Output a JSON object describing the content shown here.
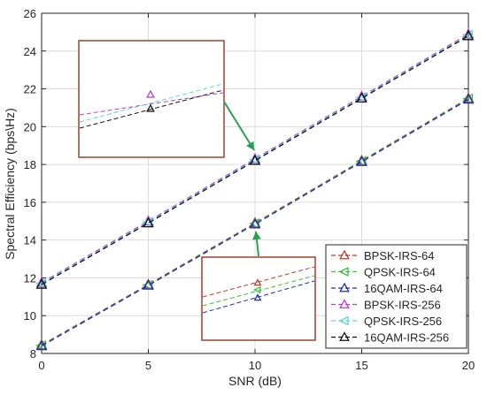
{
  "chart_data": {
    "type": "line",
    "title": "",
    "xlabel": "SNR (dB)",
    "ylabel": "Spectral Efficiency (bps\\Hz)",
    "xlim": [
      0,
      20
    ],
    "ylim": [
      8,
      26
    ],
    "xticks": [
      0,
      5,
      10,
      15,
      20
    ],
    "yticks": [
      8,
      10,
      12,
      14,
      16,
      18,
      20,
      22,
      24,
      26
    ],
    "x": [
      0,
      5,
      10,
      15,
      20
    ],
    "grid": true,
    "legend_position": "bottom-right",
    "series": [
      {
        "name": "BPSK-IRS-64",
        "values": [
          8.45,
          11.65,
          14.9,
          18.2,
          21.5
        ],
        "color": "#c0392b",
        "marker": "triangle-up"
      },
      {
        "name": "QPSK-IRS-64",
        "values": [
          8.42,
          11.62,
          14.87,
          18.17,
          21.47
        ],
        "color": "#3cc13c",
        "marker": "triangle-left"
      },
      {
        "name": "16QAM-IRS-64",
        "values": [
          8.4,
          11.6,
          14.84,
          18.14,
          21.44
        ],
        "color": "#1f2fb4",
        "marker": "triangle-up"
      },
      {
        "name": "BPSK-IRS-256",
        "values": [
          11.75,
          15.0,
          18.3,
          21.6,
          24.9
        ],
        "color": "#c03bd6",
        "marker": "triangle-up"
      },
      {
        "name": "QPSK-IRS-256",
        "values": [
          11.7,
          14.95,
          18.25,
          21.55,
          24.85
        ],
        "color": "#5ad4e8",
        "marker": "triangle-left"
      },
      {
        "name": "16QAM-IRS-256",
        "values": [
          11.65,
          14.9,
          18.2,
          21.5,
          24.8
        ],
        "color": "#111111",
        "marker": "triangle-up"
      }
    ],
    "insets": [
      {
        "name": "upper-zoom",
        "frame_color": "#a0412d",
        "arrow_color": "#2e9e4f",
        "target": {
          "x": 10,
          "y": 18.25
        }
      },
      {
        "name": "lower-zoom",
        "frame_color": "#a0412d",
        "arrow_color": "#2e9e4f",
        "target": {
          "x": 10,
          "y": 14.87
        }
      }
    ]
  }
}
